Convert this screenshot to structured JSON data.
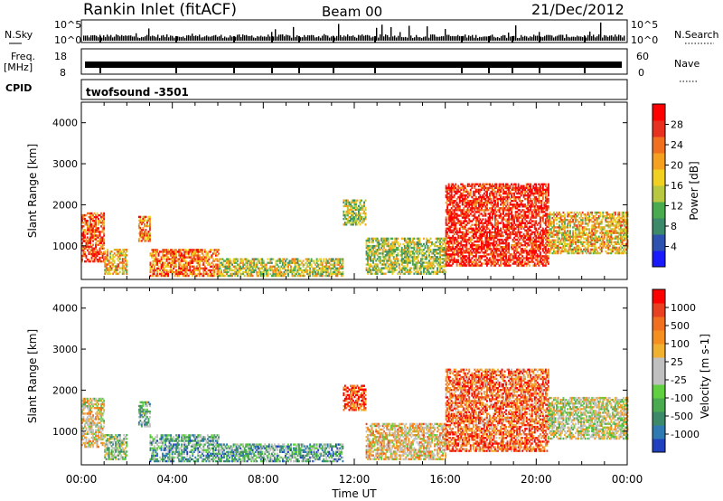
{
  "header": {
    "station": "Rankin Inlet (fitACF)",
    "beam": "Beam 00",
    "date": "21/Dec/2012"
  },
  "strips": {
    "nsky_label": "N.Sky",
    "nsearch_label": "N.Search",
    "freq_label": "Freq.",
    "freq_unit": "[MHz]",
    "nave_label": "Nave",
    "cpid_label": "CPID",
    "cpid_value": "twofsound -3501",
    "nsky_ticks": [
      "10^5",
      "10^0"
    ],
    "freq_ticks": [
      "18",
      "8"
    ],
    "nave_ticks": [
      "60",
      "0"
    ],
    "colors": {
      "nsky": "#000000",
      "freq": "#000000"
    }
  },
  "chart_data": [
    {
      "type": "heatmap",
      "name": "power",
      "ylabel": "Slant Range [km]",
      "ylim": [
        180,
        4500
      ],
      "xlim": [
        0,
        24
      ],
      "y_ticks": [
        "1000",
        "2000",
        "3000",
        "4000"
      ],
      "x_ticks": [
        "00:00",
        "04:00",
        "08:00",
        "12:00",
        "16:00",
        "20:00",
        "00:00"
      ],
      "colorbar": {
        "label": "Power [dB]",
        "ticks": [
          "4",
          "8",
          "12",
          "16",
          "20",
          "24",
          "28"
        ],
        "colors": [
          "#1a1aff",
          "#2d52b0",
          "#3d8a6a",
          "#4aaa50",
          "#b8c840",
          "#f0d020",
          "#f5a020",
          "#f07020",
          "#e83020",
          "#ff0000"
        ]
      },
      "regions": [
        {
          "t": [
            0.0,
            1.0
          ],
          "r": [
            600,
            1800
          ],
          "level": 0.82
        },
        {
          "t": [
            1.0,
            2.0
          ],
          "r": [
            300,
            900
          ],
          "level": 0.6
        },
        {
          "t": [
            2.5,
            3.0
          ],
          "r": [
            1100,
            1700
          ],
          "level": 0.7
        },
        {
          "t": [
            3.0,
            6.0
          ],
          "r": [
            250,
            900
          ],
          "level": 0.75
        },
        {
          "t": [
            6.0,
            11.5
          ],
          "r": [
            250,
            700
          ],
          "level": 0.5
        },
        {
          "t": [
            11.5,
            12.5
          ],
          "r": [
            1500,
            2100
          ],
          "level": 0.45
        },
        {
          "t": [
            12.5,
            16.0
          ],
          "r": [
            300,
            1200
          ],
          "level": 0.45
        },
        {
          "t": [
            16.0,
            20.5
          ],
          "r": [
            500,
            2500
          ],
          "level": 0.9
        },
        {
          "t": [
            20.5,
            24.0
          ],
          "r": [
            800,
            1800
          ],
          "level": 0.6
        }
      ]
    },
    {
      "type": "heatmap",
      "name": "velocity",
      "ylabel": "Slant Range [km]",
      "ylim": [
        180,
        4500
      ],
      "xlim": [
        0,
        24
      ],
      "y_ticks": [
        "1000",
        "2000",
        "3000",
        "4000"
      ],
      "x_ticks": [
        "00:00",
        "04:00",
        "08:00",
        "12:00",
        "16:00",
        "20:00",
        "00:00"
      ],
      "xlabel": "Time UT",
      "colorbar": {
        "label": "Velocity [m s-1]",
        "ticks": [
          "1000",
          "500",
          "100",
          "25",
          "-25",
          "-100",
          "-500",
          "-1000"
        ],
        "colors": [
          "#2040c0",
          "#2f7ab0",
          "#3d8a6a",
          "#4aaa50",
          "#60d040",
          "#c0c0c0",
          "#c0c0c0",
          "#f0b030",
          "#f59020",
          "#f07020",
          "#e84020",
          "#ff0000"
        ]
      },
      "regions": [
        {
          "t": [
            0.0,
            1.0
          ],
          "r": [
            600,
            1800
          ],
          "level": 0.55
        },
        {
          "t": [
            1.0,
            2.0
          ],
          "r": [
            300,
            900
          ],
          "level": 0.4
        },
        {
          "t": [
            2.5,
            3.0
          ],
          "r": [
            1100,
            1700
          ],
          "level": 0.35
        },
        {
          "t": [
            3.0,
            6.0
          ],
          "r": [
            250,
            900
          ],
          "level": 0.3
        },
        {
          "t": [
            6.0,
            11.5
          ],
          "r": [
            250,
            700
          ],
          "level": 0.3
        },
        {
          "t": [
            11.5,
            12.5
          ],
          "r": [
            1500,
            2100
          ],
          "level": 0.85
        },
        {
          "t": [
            12.5,
            16.0
          ],
          "r": [
            300,
            1200
          ],
          "level": 0.6
        },
        {
          "t": [
            16.0,
            20.5
          ],
          "r": [
            500,
            2500
          ],
          "level": 0.8
        },
        {
          "t": [
            20.5,
            24.0
          ],
          "r": [
            800,
            1800
          ],
          "level": 0.5
        }
      ]
    }
  ]
}
